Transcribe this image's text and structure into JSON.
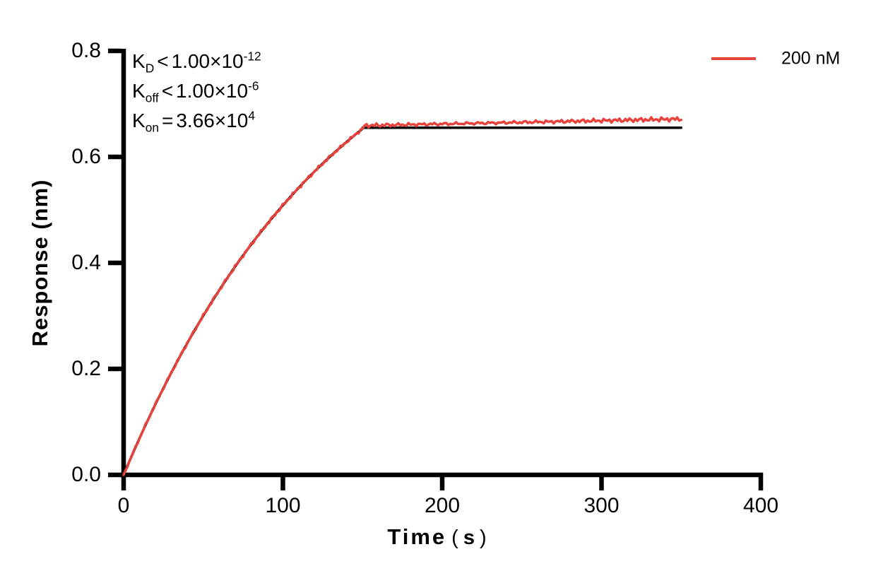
{
  "figure": {
    "background": "#ffffff",
    "axis_color": "#000000"
  },
  "chart_data": {
    "type": "line",
    "title": "",
    "xlabel": "Time ( s )",
    "xlabel_parts": {
      "word": "Time",
      "paren_open": "(",
      "unit": "s",
      "paren_close": ")"
    },
    "ylabel": "Response (nm)",
    "xlim": [
      0,
      400
    ],
    "ylim": [
      0,
      0.8
    ],
    "xticks": [
      "0",
      "100",
      "200",
      "300",
      "400"
    ],
    "xtick_values": [
      0,
      100,
      200,
      300,
      400
    ],
    "yticks": [
      "0.0",
      "0.2",
      "0.4",
      "0.6",
      "0.8"
    ],
    "ytick_values": [
      0,
      0.2,
      0.4,
      0.6,
      0.8
    ],
    "grid": false,
    "legend": {
      "position": "top-right",
      "entries": [
        {
          "label": "200 nM",
          "color": "#E8423C"
        }
      ]
    },
    "annotations": {
      "lines": [
        {
          "base": "K",
          "sub": "D",
          "op": "<",
          "mantissa": "1.00×10",
          "sup": "-12",
          "plain": "KD<1.00×10-12"
        },
        {
          "base": "K",
          "sub": "off",
          "op": "<",
          "mantissa": "1.00×10",
          "sup": "-6",
          "plain": "Koff<1.00×10-6"
        },
        {
          "base": "K",
          "sub": "on",
          "op": "=",
          "mantissa": "3.66×10",
          "sup": "4",
          "plain": "Kon=3.66×104"
        }
      ]
    },
    "series": [
      {
        "name": "200 nM",
        "role": "measured",
        "color": "#E8423C",
        "stroke_width": 3.5,
        "model": {
          "type": "association-then-plateau",
          "kobs_per_s": 0.00732,
          "rmax_nm": 0.98,
          "assoc_end_s": 150,
          "plateau_start_nm": 0.659,
          "plateau_end_nm": 0.6715,
          "noise_amp_rise_nm": 0.0032,
          "noise_amp_plateau_nm": 0.0045,
          "t_end_s": 350
        }
      },
      {
        "name": "fit",
        "role": "fit",
        "color": "#000000",
        "stroke_width": 3.4,
        "model": {
          "type": "association-then-plateau",
          "kobs_per_s": 0.00732,
          "rmax_nm": 0.98,
          "assoc_end_s": 150,
          "plateau_nm": 0.655,
          "t_end_s": 350
        },
        "sample_t_s": [
          0,
          10,
          20,
          30,
          40,
          50,
          60,
          70,
          80,
          90,
          100,
          110,
          120,
          130,
          140,
          150,
          350
        ],
        "sample_r_nm": [
          0,
          0.069,
          0.134,
          0.193,
          0.249,
          0.3,
          0.348,
          0.393,
          0.434,
          0.473,
          0.509,
          0.542,
          0.573,
          0.602,
          0.628,
          0.653,
          0.655
        ]
      }
    ],
    "kinetics_summary": {
      "KD": "<1.00×10^-12",
      "Koff": "<1.00×10^-6",
      "Kon": "=3.66×10^4"
    }
  }
}
